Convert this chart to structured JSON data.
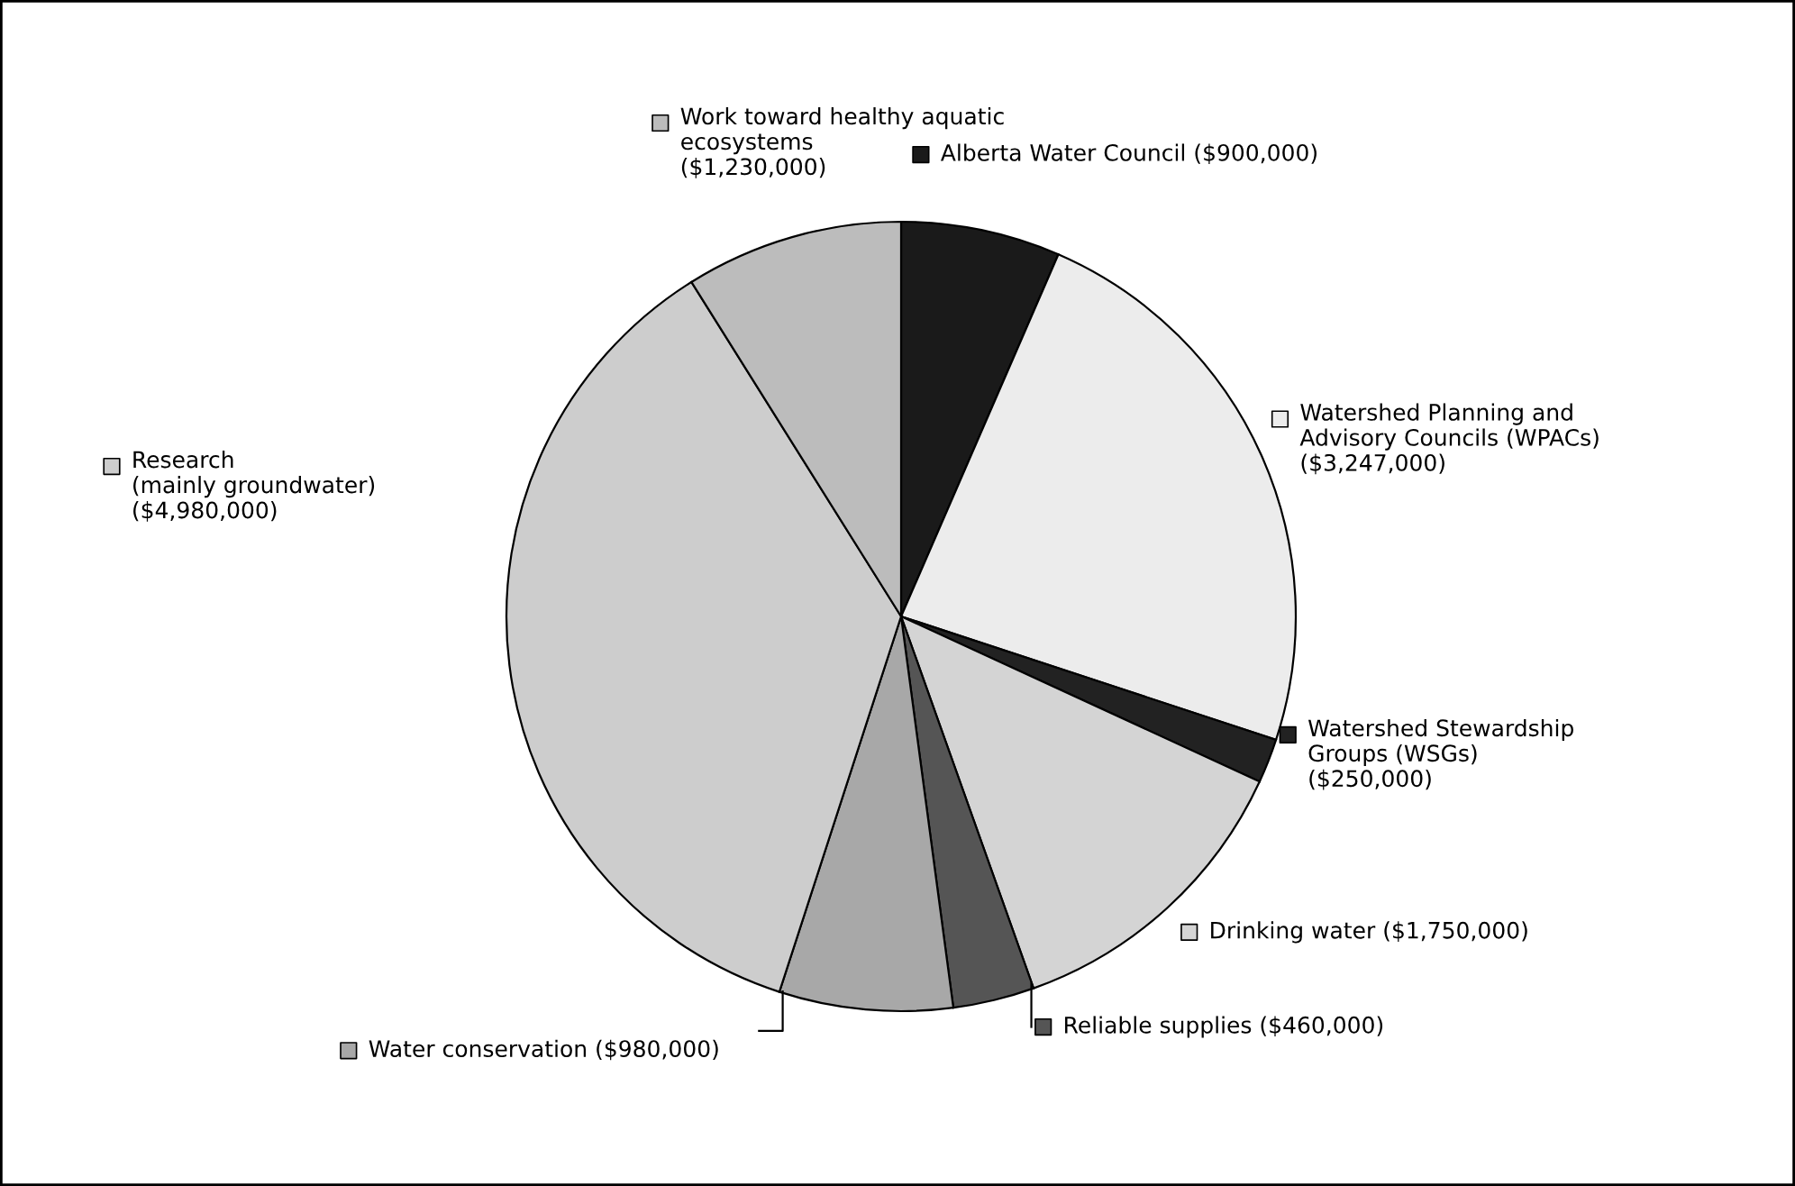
{
  "chart_data": {
    "type": "pie",
    "categories": [
      "Alberta Water Council",
      "Watershed Planning and\nAdvisory Councils (WPACs)",
      "Watershed Stewardship\nGroups (WSGs)",
      "Drinking water",
      "Reliable supplies",
      "Water conservation",
      "Research\n(mainly groundwater)",
      "Work toward healthy aquatic\necosystems"
    ],
    "values": [
      900000,
      3247000,
      250000,
      1750000,
      460000,
      980000,
      4980000,
      1230000
    ],
    "value_labels": [
      "($900,000)",
      "($3,247,000)",
      "($250,000)",
      "($1,750,000)",
      "($460,000)",
      "($980,000)",
      "($4,980,000)",
      "($1,230,000)"
    ],
    "legend": "top left",
    "colors": [
      "#1a1a1a",
      "#ececec",
      "#222222",
      "#d4d4d4",
      "#555555",
      "#a8a8a8",
      "#cdcdcd",
      "#bcbcbc"
    ]
  }
}
